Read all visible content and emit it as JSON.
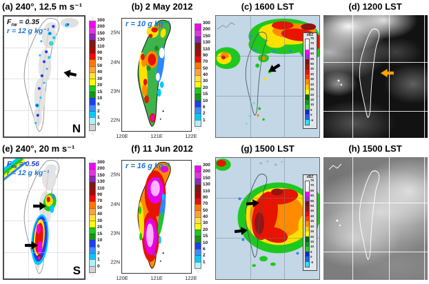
{
  "panels": {
    "a": {
      "title": "(a) 240°, 12.5 m s⁻¹",
      "frw": {
        "f": "F",
        "sub": "rw",
        "rest": " = 0.35"
      },
      "r": "r = 12 g kg⁻¹",
      "corner": "N"
    },
    "b": {
      "title": "(b) 2 May 2012",
      "r": "r = 10 g kg⁻¹"
    },
    "c": {
      "title": "(c) 1600 LST"
    },
    "d": {
      "title": "(d) 1200 LST"
    },
    "e": {
      "title": "(e) 240°, 20 m s⁻¹",
      "frw": {
        "f": "F",
        "sub": "rw",
        "rest": " = 0.56"
      },
      "r": "r = 12 g kg⁻¹",
      "corner": "S"
    },
    "f": {
      "title": "(f) 11 Jun 2012",
      "r": "r = 16 g kg⁻¹"
    },
    "g": {
      "title": "(g) 1500 LST"
    },
    "h": {
      "title": "(h) 1500 LST"
    }
  },
  "axes": {
    "lat": [
      "25N",
      "24N",
      "23N",
      "22N"
    ],
    "lon": [
      "120E",
      "121E",
      "122E"
    ]
  },
  "rain_colorbar": {
    "labels": [
      "300",
      "200",
      "150",
      "130",
      "110",
      "90",
      "70",
      "50",
      "40",
      "30",
      "20",
      "15",
      "10",
      "6",
      "2",
      "1",
      "0"
    ],
    "colors": [
      "#fa00fa",
      "#e631e6",
      "#8c28be",
      "#7d1914",
      "#a50a0a",
      "#f00a0a",
      "#ff7800",
      "#ffa03c",
      "#ffe13c",
      "#ffff00",
      "#1ec81e",
      "#149614",
      "#1e3cff",
      "#3c8cff",
      "#00c8ff",
      "#aff0ff",
      "#d2d2d2"
    ]
  },
  "radar_colorbar": {
    "title": "dBZ",
    "labels": [
      "75",
      "70",
      "65",
      "60",
      "55",
      "50",
      "45",
      "40",
      "35",
      "30",
      "25",
      "20",
      "15",
      "10",
      "5",
      "0",
      "-5"
    ],
    "colors": [
      "#ffffff",
      "#f2f2f2",
      "#ff00ff",
      "#9632c8",
      "#781414",
      "#a01414",
      "#dc1414",
      "#ff3c00",
      "#ff8c00",
      "#ffc800",
      "#ffff00",
      "#0a6414",
      "#14961e",
      "#28c828",
      "#1428c8",
      "#1e64e6",
      "#28e6ff"
    ]
  },
  "colors": {
    "annotation_blue": "#1874d2",
    "frw_blue": "#2340c8",
    "arrow_black": "#000000",
    "arrow_orange": "#ffa500",
    "radar_background": "#c3d7e6"
  }
}
